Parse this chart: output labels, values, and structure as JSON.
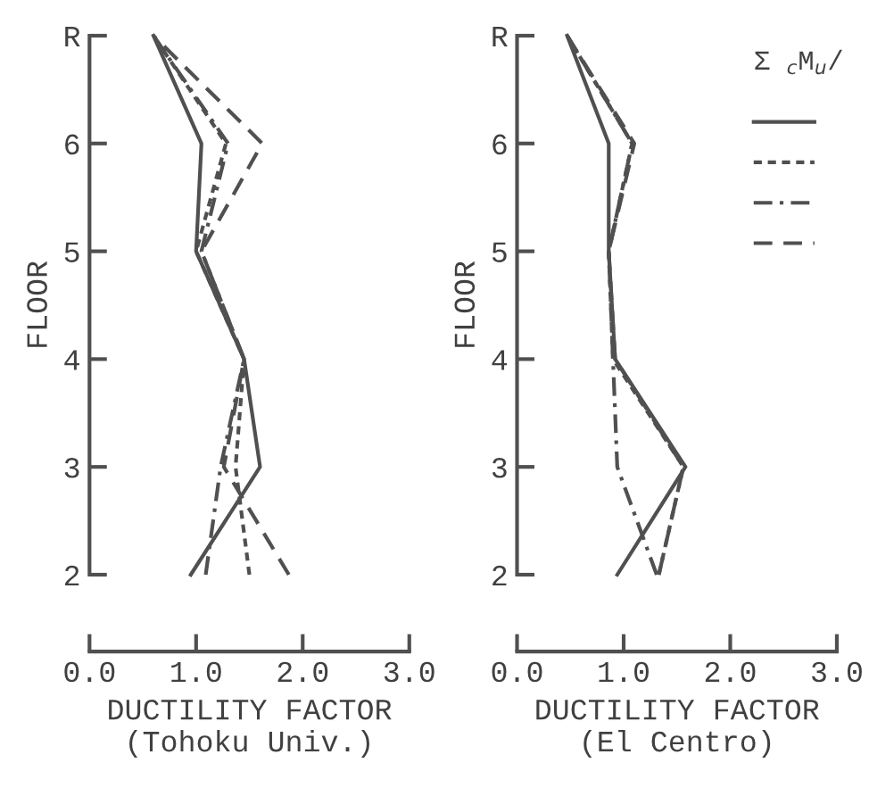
{
  "chart_data": [
    {
      "type": "line",
      "ylabel": "FLOOR",
      "xlabel": "DUCTILITY FACTOR\n(Tohoku Univ.)",
      "xlim": [
        0,
        3
      ],
      "ylim": [
        2,
        7
      ],
      "xticks": [
        {
          "value": 0,
          "label": "0.0"
        },
        {
          "value": 1,
          "label": "1.0"
        },
        {
          "value": 2,
          "label": "2.0"
        },
        {
          "value": 3,
          "label": "3.0"
        }
      ],
      "yticks": [
        2,
        3,
        4,
        5,
        6,
        {
          "value": 7,
          "label": "R"
        }
      ],
      "grid": false,
      "legend": false,
      "marker": "none",
      "series": [
        {
          "color": "#505050",
          "line_style": "solid",
          "x": [
            0.95,
            1.6,
            1.45,
            1.0,
            1.05,
            0.6
          ],
          "values": [
            2,
            3,
            4,
            5,
            6,
            7
          ]
        },
        {
          "color": "#505050",
          "line_style": "dotted",
          "x": [
            1.5,
            1.37,
            1.45,
            1.0,
            1.28,
            0.6
          ],
          "values": [
            2,
            3,
            4,
            5,
            6,
            7
          ]
        },
        {
          "color": "#505050",
          "line_style": "dashdot",
          "x": [
            1.09,
            1.23,
            1.45,
            1.05,
            1.3,
            0.6
          ],
          "values": [
            2,
            3,
            4,
            5,
            6,
            7
          ]
        },
        {
          "color": "#505050",
          "line_style": "dashed",
          "x": [
            1.87,
            1.26,
            1.45,
            1.05,
            1.62,
            0.6
          ],
          "values": [
            2,
            3,
            4,
            5,
            6,
            7
          ]
        }
      ]
    },
    {
      "type": "line",
      "ylabel": "FLOOR",
      "xlabel": "DUCTILITY FACTOR\n(El Centro)",
      "xlim": [
        0,
        3
      ],
      "ylim": [
        2,
        7
      ],
      "xticks": [
        {
          "value": 0,
          "label": "0.0"
        },
        {
          "value": 1,
          "label": "1.0"
        },
        {
          "value": 2,
          "label": "2.0"
        },
        {
          "value": 3,
          "label": "3.0"
        }
      ],
      "yticks": [
        2,
        3,
        4,
        5,
        6,
        {
          "value": 7,
          "label": "R"
        }
      ],
      "grid": false,
      "legend_title": "Σ $_{c}$M$_{u}$/",
      "marker": "none",
      "series": [
        {
          "color": "#505050",
          "line_style": "solid",
          "x": [
            0.94,
            1.58,
            0.92,
            0.86,
            0.86,
            0.47
          ],
          "values": [
            2,
            3,
            4,
            5,
            6,
            7
          ]
        },
        {
          "color": "#505050",
          "line_style": "dotted",
          "x": [
            1.33,
            1.56,
            0.9,
            0.86,
            1.08,
            0.47
          ],
          "values": [
            2,
            3,
            4,
            5,
            6,
            7
          ]
        },
        {
          "color": "#505050",
          "line_style": "dashdot",
          "x": [
            1.31,
            0.94,
            0.9,
            0.86,
            1.08,
            0.47
          ],
          "values": [
            2,
            3,
            4,
            5,
            6,
            7
          ]
        },
        {
          "color": "#505050",
          "line_style": "dashed",
          "x": [
            1.33,
            1.56,
            0.92,
            0.86,
            1.1,
            0.47
          ],
          "values": [
            2,
            3,
            4,
            5,
            6,
            7
          ]
        }
      ]
    }
  ]
}
